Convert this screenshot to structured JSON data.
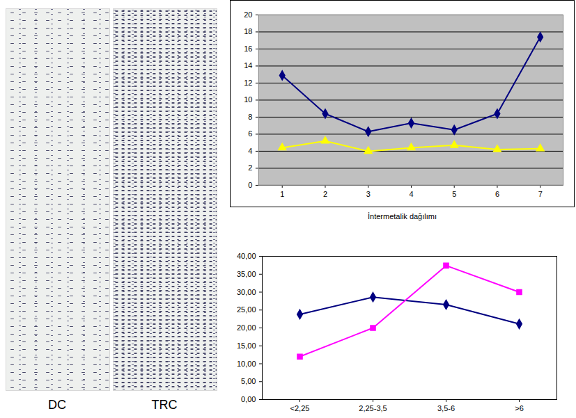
{
  "images": [
    {
      "label": "DC"
    },
    {
      "label": "TRC"
    }
  ],
  "chart_data": [
    {
      "type": "line",
      "categories": [
        "1",
        "2",
        "3",
        "4",
        "5",
        "6",
        "7"
      ],
      "series": [
        {
          "color": "#000080",
          "marker": "diamond",
          "line_style": "solid",
          "values": [
            12.9,
            8.4,
            6.3,
            7.3,
            6.5,
            8.4,
            17.4
          ]
        },
        {
          "color": "#ffff00",
          "marker": "triangle",
          "line_style": "solid",
          "values": [
            4.4,
            5.2,
            4.0,
            4.4,
            4.7,
            4.2,
            4.3
          ]
        }
      ],
      "ylim": [
        0,
        20
      ],
      "yticks": [
        0,
        2,
        4,
        6,
        8,
        10,
        12,
        14,
        16,
        18,
        20
      ],
      "grid": true
    },
    {
      "type": "line",
      "title": "İntermetalik dağılımı",
      "categories": [
        "<2,25",
        "2,25-3,5",
        "3,5-6",
        ">6"
      ],
      "series": [
        {
          "color": "#000080",
          "marker": "diamond",
          "line_style": "solid",
          "values": [
            23.8,
            28.6,
            26.5,
            21.1
          ]
        },
        {
          "color": "#ff00ff",
          "marker": "square",
          "line_style": "solid",
          "values": [
            12.0,
            20.0,
            37.4,
            30.0
          ]
        }
      ],
      "ylim": [
        0,
        40
      ],
      "yticks": [
        {
          "value": 0,
          "label": "0,00"
        },
        {
          "value": 5,
          "label": "5,00"
        },
        {
          "value": 10,
          "label": "10,00"
        },
        {
          "value": 15,
          "label": "15,00"
        },
        {
          "value": 20,
          "label": "20,00"
        },
        {
          "value": 25,
          "label": "25,00"
        },
        {
          "value": 30,
          "label": "30,00"
        },
        {
          "value": 35,
          "label": "35,00"
        },
        {
          "value": 40,
          "label": "40,00"
        }
      ],
      "grid": false
    }
  ]
}
